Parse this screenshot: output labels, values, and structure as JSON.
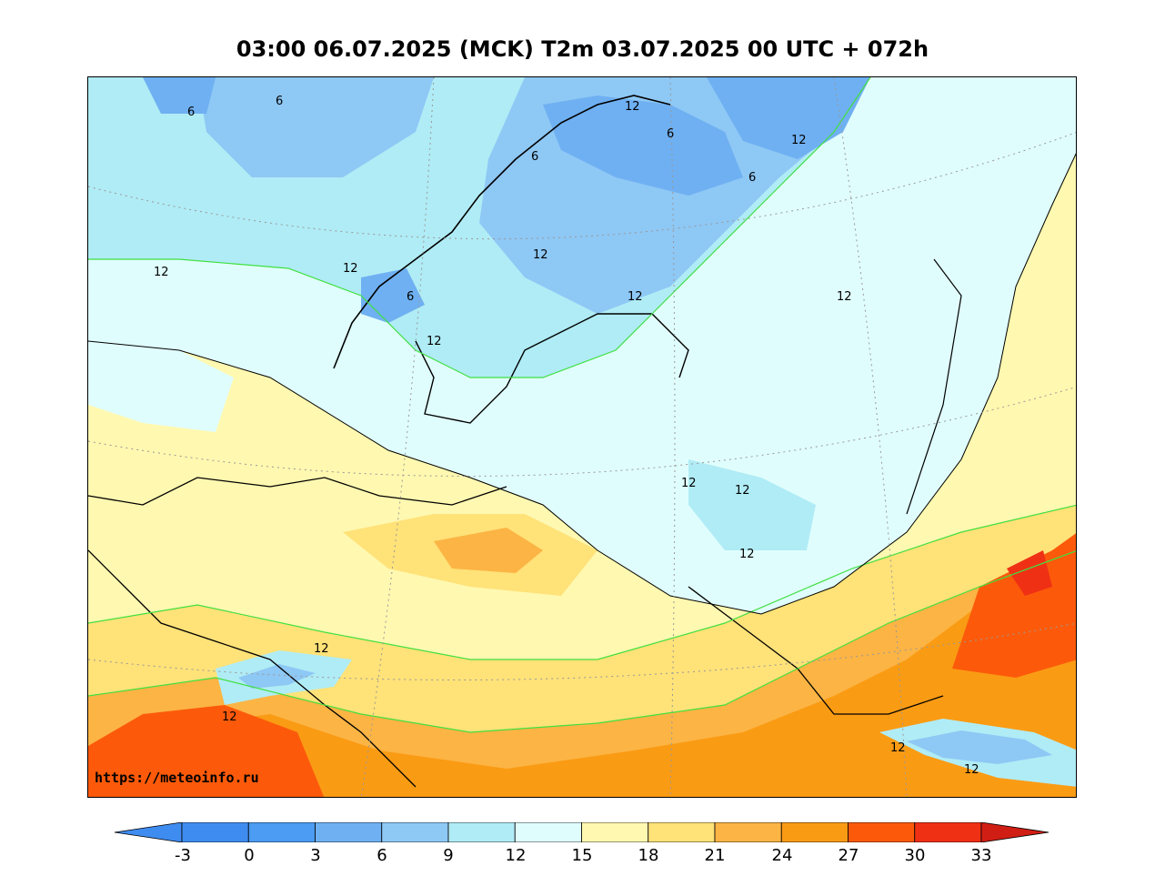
{
  "title": "03:00 06.07.2025 (MCK) T2m 03.07.2025 00 UTC + 072h",
  "source_url": "https://meteoinfo.ru",
  "colorbar": {
    "ticks": [
      "-3",
      "0",
      "3",
      "6",
      "9",
      "12",
      "15",
      "18",
      "21",
      "24",
      "27",
      "30",
      "33"
    ],
    "colors": [
      "#3f8cf0",
      "#4b9cf2",
      "#6fb0f2",
      "#8ec8f5",
      "#b0ecf5",
      "#e0fdfd",
      "#fff8b0",
      "#ffe278",
      "#fcb444",
      "#fa9b14",
      "#fc5a0a",
      "#f03014"
    ],
    "under_color": "#3f8cf0",
    "over_color": "#d01e14"
  },
  "map": {
    "contour_labels": [
      "6",
      "6",
      "6",
      "6",
      "6",
      "6",
      "12",
      "12",
      "12",
      "12",
      "12",
      "12",
      "12",
      "12",
      "12",
      "12",
      "12",
      "12",
      "12",
      "12",
      "12"
    ]
  }
}
